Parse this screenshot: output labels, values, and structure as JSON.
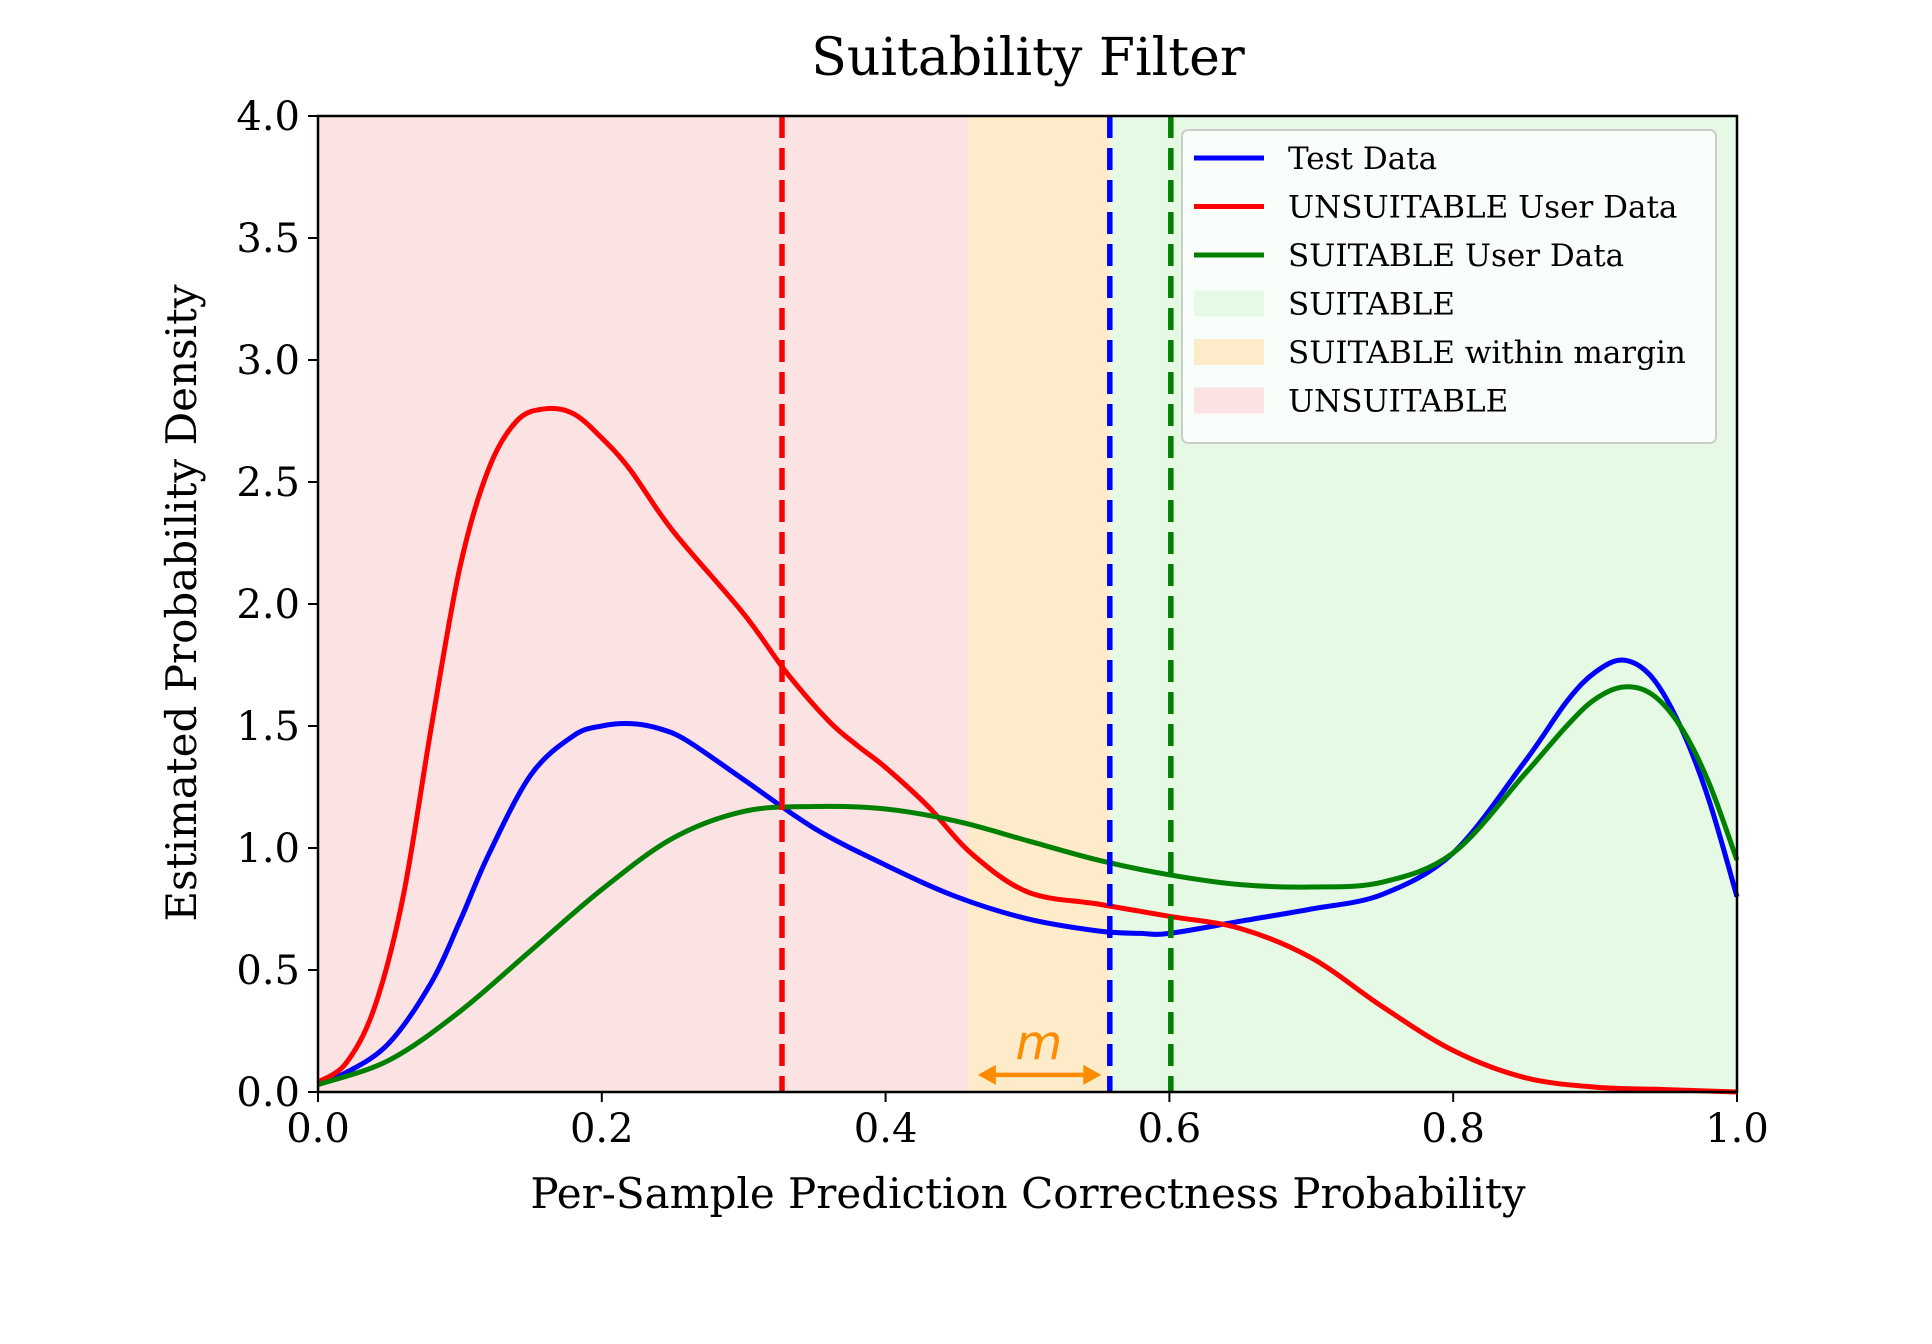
{
  "chart_data": {
    "type": "line",
    "title": "Suitability Filter",
    "xlabel": "Per-Sample Prediction Correctness Probability",
    "ylabel": "Estimated Probability Density",
    "xlim": [
      0.0,
      1.0
    ],
    "ylim": [
      0.0,
      4.0
    ],
    "xticks": [
      "0.0",
      "0.2",
      "0.4",
      "0.6",
      "0.8",
      "1.0"
    ],
    "yticks": [
      "0.0",
      "0.5",
      "1.0",
      "1.5",
      "2.0",
      "2.5",
      "3.0",
      "3.5",
      "4.0"
    ],
    "regions": [
      {
        "name": "UNSUITABLE",
        "x0": 0.0,
        "x1": 0.458,
        "color": "#fbe3e3"
      },
      {
        "name": "SUITABLE within margin",
        "x0": 0.458,
        "x1": 0.558,
        "color": "#fdebc9"
      },
      {
        "name": "SUITABLE",
        "x0": 0.558,
        "x1": 1.0,
        "color": "#e5f9e5"
      }
    ],
    "series": [
      {
        "name": "Test Data",
        "color": "#0000ff",
        "x": [
          0.0,
          0.02,
          0.05,
          0.08,
          0.1,
          0.12,
          0.15,
          0.18,
          0.2,
          0.22,
          0.24,
          0.26,
          0.3,
          0.35,
          0.4,
          0.45,
          0.5,
          0.55,
          0.58,
          0.6,
          0.65,
          0.7,
          0.75,
          0.8,
          0.85,
          0.88,
          0.9,
          0.92,
          0.94,
          0.96,
          0.98,
          1.0
        ],
        "y": [
          0.04,
          0.08,
          0.2,
          0.45,
          0.7,
          0.97,
          1.3,
          1.46,
          1.5,
          1.51,
          1.49,
          1.44,
          1.28,
          1.08,
          0.93,
          0.8,
          0.71,
          0.66,
          0.65,
          0.65,
          0.7,
          0.75,
          0.81,
          0.98,
          1.35,
          1.6,
          1.72,
          1.77,
          1.7,
          1.5,
          1.2,
          0.8
        ]
      },
      {
        "name": "UNSUITABLE User Data",
        "color": "#ff0000",
        "x": [
          0.0,
          0.02,
          0.04,
          0.06,
          0.08,
          0.1,
          0.12,
          0.14,
          0.16,
          0.18,
          0.2,
          0.22,
          0.25,
          0.3,
          0.33,
          0.36,
          0.38,
          0.4,
          0.43,
          0.46,
          0.5,
          0.55,
          0.6,
          0.65,
          0.7,
          0.75,
          0.8,
          0.85,
          0.9,
          0.95,
          1.0
        ],
        "y": [
          0.04,
          0.12,
          0.35,
          0.8,
          1.5,
          2.15,
          2.55,
          2.75,
          2.8,
          2.78,
          2.68,
          2.55,
          2.3,
          1.96,
          1.72,
          1.52,
          1.42,
          1.33,
          1.17,
          0.98,
          0.82,
          0.77,
          0.72,
          0.67,
          0.55,
          0.35,
          0.17,
          0.06,
          0.02,
          0.01,
          0.0
        ]
      },
      {
        "name": "SUITABLE User Data",
        "color": "#008000",
        "x": [
          0.0,
          0.05,
          0.1,
          0.15,
          0.2,
          0.25,
          0.3,
          0.35,
          0.4,
          0.45,
          0.5,
          0.55,
          0.6,
          0.65,
          0.7,
          0.75,
          0.8,
          0.85,
          0.88,
          0.9,
          0.92,
          0.94,
          0.96,
          0.98,
          1.0
        ],
        "y": [
          0.03,
          0.13,
          0.33,
          0.58,
          0.83,
          1.04,
          1.15,
          1.17,
          1.16,
          1.11,
          1.03,
          0.95,
          0.89,
          0.85,
          0.84,
          0.86,
          0.98,
          1.3,
          1.5,
          1.61,
          1.66,
          1.63,
          1.5,
          1.27,
          0.95
        ]
      }
    ],
    "vlines": [
      {
        "x": 0.327,
        "color": "#ff0000",
        "style": "dashed"
      },
      {
        "x": 0.558,
        "color": "#0000ff",
        "style": "dashed"
      },
      {
        "x": 0.601,
        "color": "#008000",
        "style": "dashed"
      }
    ],
    "annotations": [
      {
        "text": "m",
        "x": 0.508,
        "y": 0.2,
        "color": "#ff8c00",
        "arrow_from": 0.465,
        "arrow_to": 0.552,
        "arrow_y": 0.07
      }
    ],
    "legend": {
      "position": "top-right",
      "entries": [
        {
          "label": "Test Data",
          "kind": "line",
          "color": "#0000ff"
        },
        {
          "label": "UNSUITABLE User Data",
          "kind": "line",
          "color": "#ff0000"
        },
        {
          "label": "SUITABLE User Data",
          "kind": "line",
          "color": "#008000"
        },
        {
          "label": "SUITABLE",
          "kind": "patch",
          "color": "#e5f9e5"
        },
        {
          "label": "SUITABLE within margin",
          "kind": "patch",
          "color": "#fdebc9"
        },
        {
          "label": "UNSUITABLE",
          "kind": "patch",
          "color": "#fbe3e3"
        }
      ]
    }
  }
}
